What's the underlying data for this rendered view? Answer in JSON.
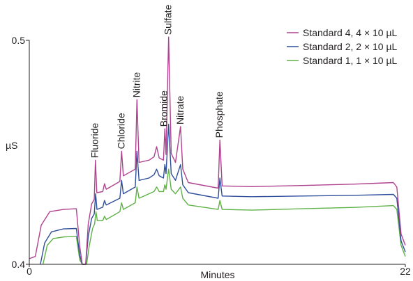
{
  "chart_data": {
    "type": "line",
    "title": "",
    "xlabel": "Minutes",
    "ylabel": "µS",
    "xlim": [
      0,
      22
    ],
    "ylim": [
      0.4,
      0.5
    ],
    "x_ticks": [
      {
        "value": 0,
        "label": "0"
      },
      {
        "value": 22,
        "label": "22"
      }
    ],
    "y_ticks": [
      {
        "value": 0.4,
        "label": "0.4"
      },
      {
        "value": 0.5,
        "label": "0.5"
      }
    ],
    "grid": false,
    "legend_position": "top-right",
    "peak_labels": [
      {
        "label": "Fluoride",
        "x": 3.85,
        "y": 0.4465
      },
      {
        "label": "Chloride",
        "x": 5.4,
        "y": 0.4505
      },
      {
        "label": "Nitrite",
        "x": 6.3,
        "y": 0.4735
      },
      {
        "label": "Bromide",
        "x": 7.9,
        "y": 0.4605
      },
      {
        "label": "Sulfate",
        "x": 8.15,
        "y": 0.5015
      },
      {
        "label": "Nitrate",
        "x": 8.85,
        "y": 0.4615
      },
      {
        "label": "Phosphate",
        "x": 11.15,
        "y": 0.4555
      }
    ],
    "series": [
      {
        "name": "Standard 4, 4 × 10 µL",
        "color": "#b0418f",
        "points": [
          [
            0,
            0.4025
          ],
          [
            0.35,
            0.4035
          ],
          [
            0.7,
            0.4175
          ],
          [
            1.2,
            0.4235
          ],
          [
            2.0,
            0.4245
          ],
          [
            2.75,
            0.4248
          ],
          [
            2.95,
            0.408
          ],
          [
            3.1,
            0.4
          ],
          [
            3.3,
            0.4
          ],
          [
            3.45,
            0.418
          ],
          [
            3.65,
            0.427
          ],
          [
            3.8,
            0.429
          ],
          [
            3.87,
            0.4465
          ],
          [
            3.95,
            0.432
          ],
          [
            4.3,
            0.4325
          ],
          [
            4.4,
            0.436
          ],
          [
            4.5,
            0.4335
          ],
          [
            5.3,
            0.437
          ],
          [
            5.4,
            0.4505
          ],
          [
            5.5,
            0.4395
          ],
          [
            6.2,
            0.4425
          ],
          [
            6.3,
            0.4735
          ],
          [
            6.42,
            0.4455
          ],
          [
            7.0,
            0.4465
          ],
          [
            7.3,
            0.448
          ],
          [
            7.45,
            0.4525
          ],
          [
            7.6,
            0.4475
          ],
          [
            7.85,
            0.4465
          ],
          [
            7.93,
            0.4605
          ],
          [
            8.0,
            0.449
          ],
          [
            8.15,
            0.5015
          ],
          [
            8.3,
            0.4495
          ],
          [
            8.55,
            0.4455
          ],
          [
            8.85,
            0.4615
          ],
          [
            8.98,
            0.4425
          ],
          [
            9.3,
            0.4365
          ],
          [
            11.05,
            0.434
          ],
          [
            11.15,
            0.4555
          ],
          [
            11.28,
            0.435
          ],
          [
            13.0,
            0.4347
          ],
          [
            16.0,
            0.4352
          ],
          [
            19.0,
            0.4358
          ],
          [
            21.3,
            0.4365
          ],
          [
            21.5,
            0.4345
          ],
          [
            21.75,
            0.4135
          ],
          [
            22,
            0.4085
          ]
        ]
      },
      {
        "name": "Standard 2, 2 × 10 µL",
        "color": "#2f4f9b",
        "points": [
          [
            0.65,
            0.4
          ],
          [
            0.9,
            0.4095
          ],
          [
            1.3,
            0.4145
          ],
          [
            2.0,
            0.4158
          ],
          [
            2.75,
            0.416
          ],
          [
            2.95,
            0.404
          ],
          [
            3.1,
            0.4
          ],
          [
            3.3,
            0.4
          ],
          [
            3.45,
            0.4125
          ],
          [
            3.65,
            0.4205
          ],
          [
            3.8,
            0.4225
          ],
          [
            3.88,
            0.4315
          ],
          [
            3.96,
            0.4245
          ],
          [
            4.3,
            0.4255
          ],
          [
            4.4,
            0.4285
          ],
          [
            4.5,
            0.4265
          ],
          [
            5.3,
            0.4295
          ],
          [
            5.4,
            0.4375
          ],
          [
            5.5,
            0.4315
          ],
          [
            6.2,
            0.4345
          ],
          [
            6.3,
            0.4505
          ],
          [
            6.42,
            0.4375
          ],
          [
            7.0,
            0.4385
          ],
          [
            7.3,
            0.44
          ],
          [
            7.45,
            0.4425
          ],
          [
            7.6,
            0.4395
          ],
          [
            7.85,
            0.4385
          ],
          [
            7.93,
            0.4445
          ],
          [
            8.0,
            0.4405
          ],
          [
            8.15,
            0.4625
          ],
          [
            8.3,
            0.4405
          ],
          [
            8.55,
            0.4375
          ],
          [
            8.85,
            0.4445
          ],
          [
            8.98,
            0.4355
          ],
          [
            9.3,
            0.432
          ],
          [
            11.05,
            0.4295
          ],
          [
            11.15,
            0.4385
          ],
          [
            11.28,
            0.4305
          ],
          [
            13.0,
            0.4302
          ],
          [
            16.0,
            0.4305
          ],
          [
            19.0,
            0.4308
          ],
          [
            21.3,
            0.4312
          ],
          [
            21.5,
            0.4295
          ],
          [
            21.75,
            0.4105
          ],
          [
            22,
            0.4055
          ]
        ]
      },
      {
        "name": "Standard 1, 1 × 10 µL",
        "color": "#5fb246",
        "points": [
          [
            0.8,
            0.4
          ],
          [
            1.05,
            0.4085
          ],
          [
            1.4,
            0.4115
          ],
          [
            2.0,
            0.4122
          ],
          [
            2.75,
            0.4125
          ],
          [
            2.95,
            0.402
          ],
          [
            3.1,
            0.4
          ],
          [
            3.35,
            0.4
          ],
          [
            3.5,
            0.408
          ],
          [
            3.7,
            0.416
          ],
          [
            3.82,
            0.418
          ],
          [
            3.9,
            0.4235
          ],
          [
            3.98,
            0.4195
          ],
          [
            4.3,
            0.4195
          ],
          [
            4.4,
            0.4215
          ],
          [
            4.5,
            0.42
          ],
          [
            5.3,
            0.4235
          ],
          [
            5.4,
            0.4275
          ],
          [
            5.5,
            0.4245
          ],
          [
            6.2,
            0.4275
          ],
          [
            6.3,
            0.4345
          ],
          [
            6.42,
            0.4295
          ],
          [
            7.0,
            0.4315
          ],
          [
            7.3,
            0.4325
          ],
          [
            7.45,
            0.4345
          ],
          [
            7.6,
            0.4325
          ],
          [
            7.85,
            0.4325
          ],
          [
            7.93,
            0.4355
          ],
          [
            8.0,
            0.4335
          ],
          [
            8.15,
            0.4425
          ],
          [
            8.3,
            0.4335
          ],
          [
            8.55,
            0.4315
          ],
          [
            8.85,
            0.4345
          ],
          [
            8.98,
            0.4295
          ],
          [
            9.3,
            0.4265
          ],
          [
            11.05,
            0.4245
          ],
          [
            11.15,
            0.4285
          ],
          [
            11.28,
            0.4245
          ],
          [
            13.0,
            0.4242
          ],
          [
            16.0,
            0.4248
          ],
          [
            19.0,
            0.4254
          ],
          [
            21.3,
            0.4262
          ],
          [
            21.5,
            0.4245
          ],
          [
            21.75,
            0.4085
          ],
          [
            22,
            0.4035
          ]
        ]
      }
    ]
  }
}
